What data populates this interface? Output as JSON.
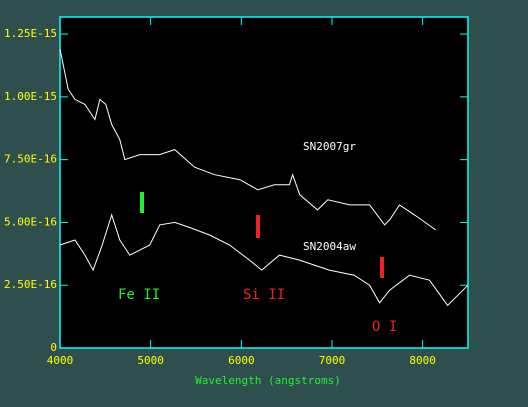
{
  "chart_data": {
    "type": "line",
    "xlabel": "Wavelength (angstroms)",
    "xlim": [
      4000,
      8500
    ],
    "xticks": [
      4000,
      5000,
      6000,
      7000,
      8000
    ],
    "ylim": [
      0,
      1.318e-15
    ],
    "yticks": [
      0,
      {
        "value": 2.5e-16,
        "label": "2.50E-16"
      },
      {
        "value": 5e-16,
        "label": "5.00E-16"
      },
      {
        "value": 7.5e-16,
        "label": "7.50E-16"
      },
      {
        "value": 1e-15,
        "label": "1.00E-15"
      },
      {
        "value": 1.25e-15,
        "label": "1.25E-15"
      }
    ],
    "series": [
      {
        "name": "SN2007gr",
        "color": "#ffffff",
        "x": [
          4000,
          4090,
          4165,
          4275,
          4385,
          4440,
          4505,
          4570,
          4660,
          4715,
          4880,
          5100,
          5265,
          5485,
          5705,
          5985,
          6180,
          6365,
          6530,
          6565,
          6645,
          6840,
          6955,
          7195,
          7415,
          7580,
          7635,
          7745,
          7910,
          8145
        ],
        "values": [
          1.19e-15,
          1.03e-15,
          9.9e-16,
          9.7e-16,
          9.1e-16,
          9.9e-16,
          9.7e-16,
          8.9e-16,
          8.3e-16,
          7.5e-16,
          7.7e-16,
          7.7e-16,
          7.9e-16,
          7.2e-16,
          6.9e-16,
          6.7e-16,
          6.3e-16,
          6.5e-16,
          6.5e-16,
          6.9e-16,
          6.1e-16,
          5.5e-16,
          5.9e-16,
          5.7e-16,
          5.7e-16,
          4.9e-16,
          5.1e-16,
          5.7e-16,
          5.3e-16,
          4.7e-16
        ]
      },
      {
        "name": "SN2004aw",
        "color": "#ffffff",
        "x": [
          4000,
          4165,
          4275,
          4365,
          4465,
          4570,
          4660,
          4770,
          4880,
          4990,
          5100,
          5265,
          5430,
          5650,
          5870,
          6090,
          6225,
          6420,
          6640,
          6970,
          7245,
          7415,
          7525,
          7635,
          7855,
          8075,
          8275,
          8500
        ],
        "values": [
          4.1e-16,
          4.3e-16,
          3.7e-16,
          3.1e-16,
          4.1e-16,
          5.3e-16,
          4.3e-16,
          3.7e-16,
          3.9e-16,
          4.1e-16,
          4.9e-16,
          5e-16,
          4.8e-16,
          4.5e-16,
          4.1e-16,
          3.5e-16,
          3.1e-16,
          3.7e-16,
          3.5e-16,
          3.1e-16,
          2.9e-16,
          2.5e-16,
          1.8e-16,
          2.3e-16,
          2.9e-16,
          2.7e-16,
          1.7e-16,
          2.5e-16
        ]
      }
    ],
    "annotations": [
      "Fe II",
      "Si II",
      "O I"
    ]
  }
}
